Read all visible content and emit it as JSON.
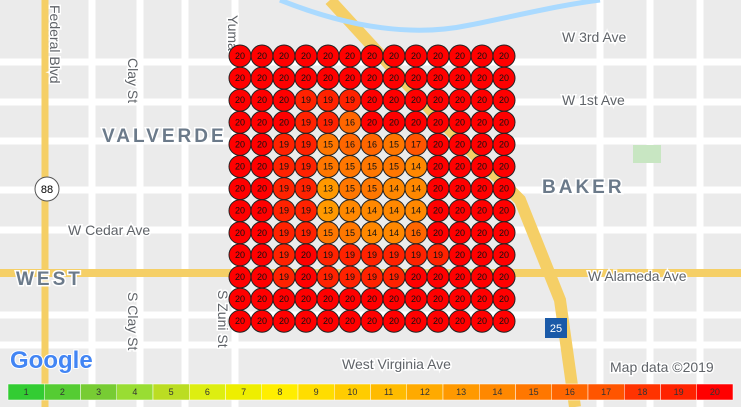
{
  "map": {
    "labels": {
      "federal": "Federal Blvd",
      "clay": "Clay St",
      "yuma": "Yuma",
      "valverde": "VALVERDE",
      "w3rd": "W 3rd Ave",
      "w1st": "W 1st Ave",
      "baker": "BAKER",
      "cedar": "W Cedar Ave",
      "west": "WEST",
      "alameda": "W Alameda Ave",
      "sclay": "S Clay St",
      "szuni": "S Zuni St",
      "virginia": "West Virginia Ave"
    },
    "route_state": "88",
    "route_interstate": "25",
    "logo": "Google",
    "attribution": "Map data ©2019"
  },
  "grid": {
    "rows": [
      [
        20,
        20,
        20,
        20,
        20,
        20,
        20,
        20,
        20,
        20,
        20,
        20,
        20
      ],
      [
        20,
        20,
        20,
        20,
        20,
        20,
        20,
        20,
        20,
        20,
        20,
        20,
        20
      ],
      [
        20,
        20,
        20,
        19,
        19,
        19,
        20,
        20,
        20,
        20,
        20,
        20,
        20
      ],
      [
        20,
        20,
        20,
        19,
        19,
        16,
        20,
        20,
        20,
        20,
        20,
        20,
        20
      ],
      [
        20,
        20,
        19,
        19,
        15,
        16,
        16,
        15,
        17,
        20,
        20,
        20,
        20
      ],
      [
        20,
        20,
        19,
        19,
        15,
        15,
        15,
        15,
        14,
        20,
        20,
        20,
        20
      ],
      [
        20,
        20,
        19,
        19,
        13,
        15,
        15,
        14,
        14,
        20,
        20,
        20,
        20
      ],
      [
        20,
        20,
        19,
        19,
        13,
        14,
        14,
        14,
        14,
        20,
        20,
        20,
        20
      ],
      [
        20,
        20,
        19,
        19,
        15,
        15,
        14,
        14,
        16,
        20,
        20,
        20,
        20
      ],
      [
        20,
        20,
        19,
        20,
        19,
        19,
        19,
        19,
        19,
        19,
        20,
        20,
        20
      ],
      [
        20,
        20,
        19,
        20,
        19,
        19,
        19,
        19,
        20,
        20,
        20,
        20,
        20
      ],
      [
        20,
        20,
        20,
        20,
        20,
        20,
        20,
        20,
        20,
        20,
        20,
        20,
        20
      ],
      [
        20,
        20,
        20,
        20,
        20,
        20,
        20,
        20,
        20,
        20,
        20,
        20,
        20
      ]
    ]
  },
  "scale": [
    {
      "value": 1,
      "color": "#33cc33"
    },
    {
      "value": 2,
      "color": "#55cc33"
    },
    {
      "value": 3,
      "color": "#77cc33"
    },
    {
      "value": 4,
      "color": "#99dd33"
    },
    {
      "value": 5,
      "color": "#bbdd22"
    },
    {
      "value": 6,
      "color": "#ddee11"
    },
    {
      "value": 7,
      "color": "#eeee00"
    },
    {
      "value": 8,
      "color": "#ffee00"
    },
    {
      "value": 9,
      "color": "#ffdd00"
    },
    {
      "value": 10,
      "color": "#ffcc00"
    },
    {
      "value": 11,
      "color": "#ffbb00"
    },
    {
      "value": 12,
      "color": "#ffaa00"
    },
    {
      "value": 13,
      "color": "#ff9900"
    },
    {
      "value": 14,
      "color": "#ff8800"
    },
    {
      "value": 15,
      "color": "#ff7700"
    },
    {
      "value": 16,
      "color": "#ff6600"
    },
    {
      "value": 17,
      "color": "#ff5500"
    },
    {
      "value": 18,
      "color": "#ff3300"
    },
    {
      "value": 19,
      "color": "#ff2200"
    },
    {
      "value": 20,
      "color": "#ff0000"
    }
  ]
}
